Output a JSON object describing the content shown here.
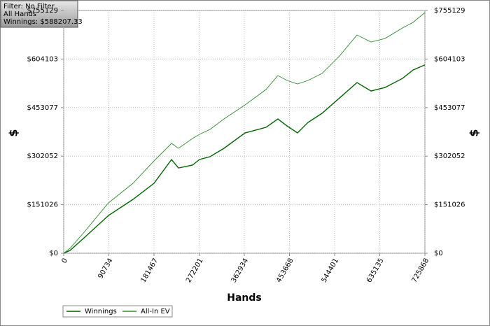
{
  "chart_data": {
    "type": "line",
    "info": [
      "Filter: No Filter",
      "All Hands",
      "Winnings: $588207.33"
    ],
    "xlabel": "Hands",
    "ylabel": "$",
    "x": [
      0,
      12660,
      40952,
      90030,
      139263,
      181464,
      216632,
      230699,
      258833,
      272900,
      293998,
      322137,
      364337,
      406541,
      430455,
      448742,
      469842,
      490943,
      519077,
      554250,
      589418,
      617552,
      645686,
      680853,
      701953,
      725868
    ],
    "series": [
      {
        "name": "Winnings",
        "color": "#006400",
        "values": [
          0,
          8704,
          47872,
          117504,
          167552,
          217600,
          291296,
          265184,
          274208,
          291616,
          300288,
          326432,
          374272,
          391680,
          417792,
          396032,
          374272,
          406912,
          435200,
          482944,
          530816,
          504704,
          515584,
          543872,
          570000,
          585940
        ]
      },
      {
        "name": "All-In EV",
        "color": "#2e8b2e",
        "values": [
          0,
          15232,
          65280,
          156672,
          217600,
          287232,
          341632,
          326400,
          356864,
          369920,
          385152,
          417792,
          461312,
          509184,
          552704,
          537472,
          526592,
          537472,
          559232,
          613632,
          678912,
          657152,
          668032,
          700672,
          718080,
          748544
        ]
      }
    ],
    "xlim": [
      0,
      725868
    ],
    "xticks": [
      0,
      90734,
      181467,
      272201,
      362934,
      453668,
      544401,
      635135,
      725868
    ],
    "ylim": [
      0,
      755129
    ],
    "yticks": [
      {
        "value": 0,
        "label": "$0"
      },
      {
        "value": 151026,
        "label": "$151026"
      },
      {
        "value": 302052,
        "label": "$302052"
      },
      {
        "value": 453077,
        "label": "$453077"
      },
      {
        "value": 604103,
        "label": "$604103"
      },
      {
        "value": 755129,
        "label": "$755129"
      }
    ],
    "grid": true
  }
}
